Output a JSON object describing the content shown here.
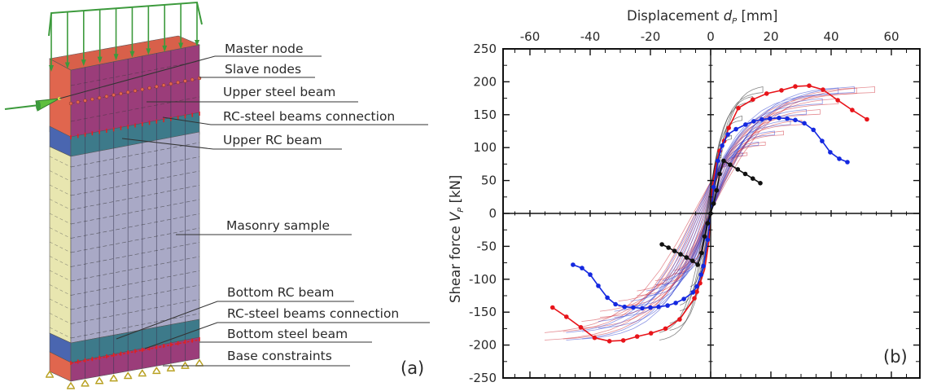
{
  "figure_a": {
    "panel_label": "(a)",
    "callouts": [
      {
        "id": "master-node",
        "text": "Master node"
      },
      {
        "id": "slave-nodes",
        "text": "Slave nodes"
      },
      {
        "id": "upper-steel-beam",
        "text": "Upper steel beam"
      },
      {
        "id": "rc-steel-connection-top",
        "text": "RC-steel beams connection"
      },
      {
        "id": "upper-rc-beam",
        "text": "Upper RC beam"
      },
      {
        "id": "masonry-sample",
        "text": "Masonry sample"
      },
      {
        "id": "bottom-rc-beam",
        "text": "Bottom RC beam"
      },
      {
        "id": "rc-steel-connection-bottom",
        "text": "RC-steel beams connection"
      },
      {
        "id": "bottom-steel-beam",
        "text": "Bottom steel beam"
      },
      {
        "id": "base-constraints",
        "text": "Base constraints"
      }
    ],
    "colors": {
      "steel_beam_side": "#e0664e",
      "steel_beam_front": "#9b3d7a",
      "rc_beam_side": "#4a66b0",
      "rc_beam_front": "#3d7a8a",
      "masonry_side": "#e8e6b0",
      "masonry_front": "#a9a9c6",
      "load": "#3c9a3c",
      "connection": "#e02020"
    }
  },
  "chart_data": {
    "type": "line",
    "panel_label": "(b)",
    "title": "",
    "xlabel": "Displacement d_P [mm]",
    "xlabel_main": "Displacement ",
    "xlabel_sym": "d",
    "xlabel_sub": "P",
    "xlabel_unit": " [mm]",
    "ylabel": "Shear force V_P [kN]",
    "ylabel_main": "Shear force ",
    "ylabel_sym": "V",
    "ylabel_sub": "P",
    "ylabel_unit": " [kN]",
    "xlim": [
      -70,
      69
    ],
    "ylim": [
      -250,
      250
    ],
    "xticks": [
      -60,
      -40,
      -20,
      0,
      20,
      40,
      60
    ],
    "xtick_labels": [
      "-60",
      "-40",
      "-20",
      "0",
      "20",
      "40",
      "60"
    ],
    "yticks": [
      250,
      200,
      150,
      100,
      50,
      0,
      -50,
      -100,
      -150,
      -200,
      -250
    ],
    "ytick_labels": [
      "250",
      "200",
      "150",
      "100",
      "50",
      "0",
      "-50",
      "-100",
      "-150",
      "-200",
      "-250"
    ],
    "xaxis_position": "top",
    "grid": false,
    "series": [
      {
        "name": "Envelope red",
        "color": "#e8141a",
        "x": [
          -52.5,
          -47.9,
          -43.1,
          -38.5,
          -33.6,
          -29,
          -24.4,
          -19.8,
          -15,
          -10.3,
          -5.4,
          -4.6,
          -3.5,
          -2,
          -0.5,
          0.5,
          2,
          3,
          4.5,
          6,
          9.2,
          14,
          18.6,
          23.5,
          28.1,
          32.7,
          37.3,
          42.2,
          47,
          51.9
        ],
        "y": [
          -143,
          -157,
          -173,
          -189,
          -194,
          -193,
          -187,
          -182,
          -175,
          -161,
          -129,
          -119,
          -106,
          -85,
          -40,
          40,
          80,
          95,
          110,
          130,
          160,
          173,
          182,
          187,
          193,
          194,
          188,
          172,
          157,
          143
        ]
      },
      {
        "name": "Envelope blue",
        "color": "#1428e0",
        "x": [
          -45.7,
          -42.7,
          -40,
          -37.3,
          -34.3,
          -31.6,
          -28.6,
          -25.7,
          -22.7,
          -20,
          -17.3,
          -14.3,
          -11.6,
          -8.9,
          -5.9,
          -4.6,
          -3.2,
          -2.4,
          -1,
          1,
          2.4,
          3.8,
          5.7,
          8.4,
          11.6,
          14.3,
          17,
          19.7,
          22.7,
          25.4,
          28.1,
          31.1,
          34.1,
          37,
          39.7,
          42.7,
          45.4
        ],
        "y": [
          -78,
          -83,
          -93,
          -110,
          -128,
          -138,
          -142,
          -143,
          -144,
          -143,
          -142,
          -140,
          -136,
          -130,
          -120,
          -111,
          -93,
          -80,
          -40,
          40,
          80,
          103,
          120,
          128,
          135,
          140,
          143,
          144,
          145,
          144,
          142,
          137,
          127,
          110,
          93,
          83,
          78
        ]
      },
      {
        "name": "Envelope black",
        "color": "#111111",
        "x": [
          -16.2,
          -14,
          -12,
          -10,
          -8,
          -6,
          -4.3,
          -3,
          -2,
          -1,
          0,
          1,
          2,
          3,
          4.3,
          6.5,
          9,
          11.5,
          14,
          16.5
        ],
        "y": [
          -47,
          -52,
          -57,
          -62,
          -67,
          -72,
          -78,
          -60,
          -35,
          -15,
          0,
          15,
          35,
          60,
          80,
          74,
          67,
          60,
          53,
          46
        ]
      }
    ]
  }
}
